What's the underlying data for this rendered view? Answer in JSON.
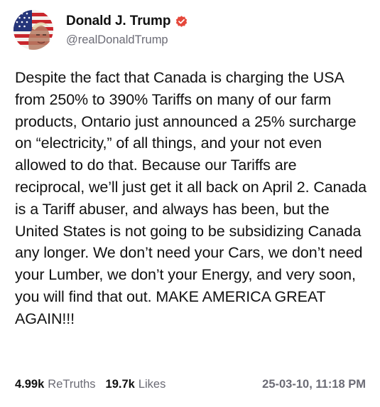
{
  "author": {
    "display_name": "Donald J. Trump",
    "handle": "@realDonaldTrump",
    "avatar_icon": "flag-portrait-avatar",
    "verified_icon": "verified-badge-icon",
    "verified_color": "#e5483b"
  },
  "post": {
    "text": "Despite the fact that Canada is charging the USA from 250% to 390% Tariffs on many of our farm products, Ontario just announced a 25% surcharge on “electricity,” of all things, and your not even allowed to do that. Because our Tariffs are reciprocal, we’ll just get it all back on April 2. Canada is a Tariff abuser, and always has been, but the United States is not going to be subsidizing Canada any longer. We don’t need your Cars, we don’t need your Lumber, we don’t your Energy, and very soon, you will find that out. MAKE AMERICA GREAT AGAIN!!!"
  },
  "footer": {
    "retruths_count": "4.99k",
    "retruths_label": "ReTruths",
    "likes_count": "19.7k",
    "likes_label": "Likes",
    "timestamp": "25-03-10, 11:18 PM"
  }
}
